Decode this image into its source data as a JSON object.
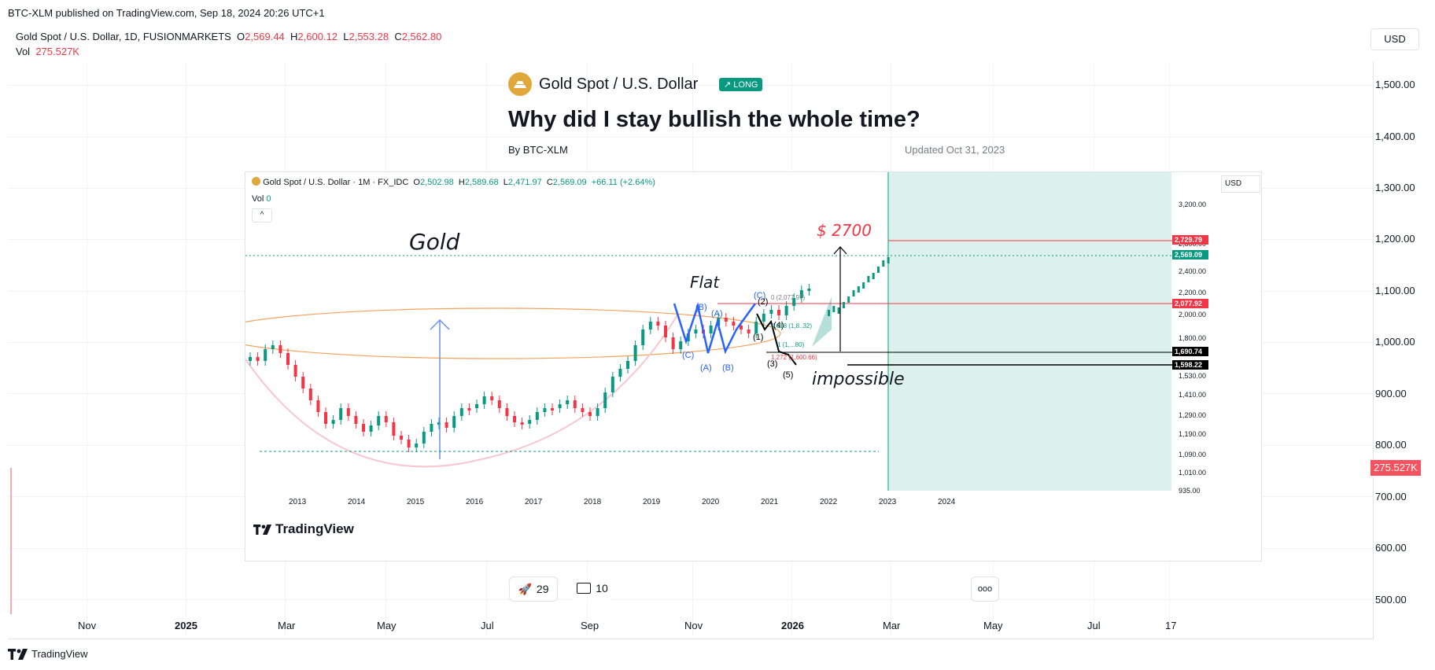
{
  "header": {
    "published": "BTC-XLM published on TradingView.com, Sep 18, 2024 20:26 UTC+1"
  },
  "legend": {
    "symbol": "Gold Spot / U.S. Dollar, 1D, FUSIONMARKETS",
    "o_label": "O",
    "o_val": "2,569.44",
    "h_label": "H",
    "h_val": "2,600.12",
    "l_label": "L",
    "l_val": "2,553.28",
    "c_label": "C",
    "c_val": "2,562.80",
    "vol_label": "Vol",
    "vol_val": "275.527K"
  },
  "currency_button": "USD",
  "price_axis": [
    "1,500.00",
    "1,400.00",
    "1,300.00",
    "1,200.00",
    "1,100.00",
    "1,000.00",
    "900.00",
    "800.00",
    "700.00",
    "600.00",
    "500.00"
  ],
  "volume_badge": "275.527K",
  "time_axis": [
    "Nov",
    "2025",
    "Mar",
    "May",
    "Jul",
    "Sep",
    "Nov",
    "2026",
    "Mar",
    "May",
    "Jul",
    "17"
  ],
  "footer": {
    "brand": "TradingView"
  },
  "idea": {
    "symbol": "Gold Spot / U.S. Dollar",
    "badge": "↗ LONG",
    "title": "Why did I stay bullish the whole time?",
    "author": "By BTC-XLM",
    "updated": "Updated Oct 31, 2023",
    "boosts": "29",
    "comments": "10",
    "more": "ooo"
  },
  "inner_chart": {
    "legend_symbol": "Gold Spot / U.S. Dollar · 1M · FX_IDC",
    "o": "2,502.98",
    "h": "2,589.68",
    "l": "2,471.97",
    "c": "2,569.09",
    "chg": "+66.11 (+2.64%)",
    "vol_label": "Vol",
    "vol_val": "0",
    "currency": "USD",
    "price_ticks": [
      "3,200.00",
      "2,800.00",
      "2,400.00",
      "2,200.00",
      "2,000.00",
      "1,800.00",
      "1,530.00",
      "1,410.00",
      "1,290.00",
      "1,190.00",
      "1,090.00",
      "1,010.00",
      "935.00"
    ],
    "price_tags": [
      {
        "label": "2,729.79",
        "color": "#f23645"
      },
      {
        "label": "2,569.09",
        "color": "#089981"
      },
      {
        "label": "2,077.92",
        "color": "#f23645"
      },
      {
        "label": "1,690.74",
        "color": "#000000"
      },
      {
        "label": "1,598.22",
        "color": "#000000"
      }
    ],
    "years": [
      "2013",
      "2014",
      "2015",
      "2016",
      "2017",
      "2018",
      "2019",
      "2020",
      "2021",
      "2022",
      "2023",
      "2024"
    ],
    "annotations": {
      "gold": "Gold",
      "flat": "Flat",
      "target": "$ 2700",
      "impossible": "impossible",
      "waves_blue": [
        "(B)",
        "(A)",
        "(C)",
        "(A)",
        "(C)",
        "(B)"
      ],
      "waves_black": [
        "(2)",
        "(4)",
        "(1)",
        "(3)",
        "(5)"
      ],
      "fib_0": "0 (2,077.97)",
      "fib_618": "0.618 (1,8..32)",
      "fib_1": "1 (1,...80)",
      "fib_1272": "1.272 (1,600.66)"
    },
    "watermark": "TradingView"
  },
  "colors": {
    "up": "#089981",
    "down": "#f23645",
    "accent_teal": "#089981",
    "zone": "#d6efe9"
  }
}
